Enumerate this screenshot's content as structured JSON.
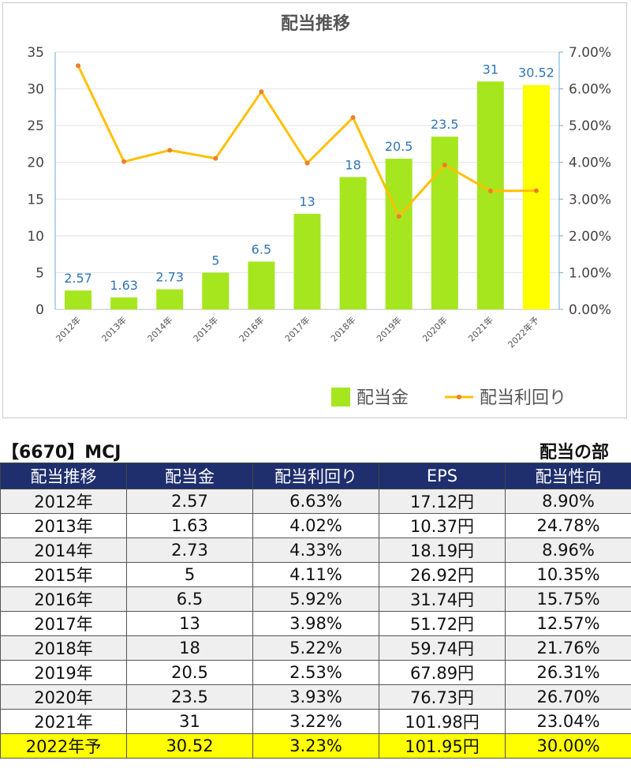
{
  "chart_data": {
    "type": "bar+line",
    "title": "配当推移",
    "categories": [
      "2012年",
      "2013年",
      "2014年",
      "2015年",
      "2016年",
      "2017年",
      "2018年",
      "2019年",
      "2020年",
      "2021年",
      "2022年予"
    ],
    "series": [
      {
        "name": "配当金",
        "kind": "bar",
        "axis": "left",
        "values": [
          2.57,
          1.63,
          2.73,
          5,
          6.5,
          13,
          18,
          20.5,
          23.5,
          31,
          30.52
        ],
        "labels": [
          "2.57",
          "1.63",
          "2.73",
          "5",
          "6.5",
          "13",
          "18",
          "20.5",
          "23.5",
          "31",
          "30.52"
        ],
        "color": "#a5e61e",
        "highlight_last_color": "#ffff00"
      },
      {
        "name": "配当利回り",
        "kind": "line",
        "axis": "right",
        "values": [
          6.63,
          4.02,
          4.33,
          4.11,
          5.92,
          3.98,
          5.22,
          2.53,
          3.93,
          3.22,
          3.23
        ],
        "color": "#ffc000",
        "marker_color": "#ed7d31"
      }
    ],
    "y_left": {
      "min": 0,
      "max": 35,
      "ticks": [
        "0",
        "5",
        "10",
        "15",
        "20",
        "25",
        "30",
        "35"
      ]
    },
    "y_right": {
      "min": 0,
      "max": 7,
      "ticks": [
        "0.00%",
        "1.00%",
        "2.00%",
        "3.00%",
        "4.00%",
        "5.00%",
        "6.00%",
        "7.00%"
      ]
    },
    "grid": true,
    "legend_position": "bottom-right"
  },
  "table": {
    "code_title": "【6670】MCJ",
    "section_title": "配当の部",
    "headers": [
      "配当推移",
      "配当金",
      "配当利回り",
      "EPS",
      "配当性向"
    ],
    "rows": [
      [
        "2012年",
        "2.57",
        "6.63%",
        "17.12円",
        "8.90%"
      ],
      [
        "2013年",
        "1.63",
        "4.02%",
        "10.37円",
        "24.78%"
      ],
      [
        "2014年",
        "2.73",
        "4.33%",
        "18.19円",
        "8.96%"
      ],
      [
        "2015年",
        "5",
        "4.11%",
        "26.92円",
        "10.35%"
      ],
      [
        "2016年",
        "6.5",
        "5.92%",
        "31.74円",
        "15.75%"
      ],
      [
        "2017年",
        "13",
        "3.98%",
        "51.72円",
        "12.57%"
      ],
      [
        "2018年",
        "18",
        "5.22%",
        "59.74円",
        "21.76%"
      ],
      [
        "2019年",
        "20.5",
        "2.53%",
        "67.89円",
        "26.31%"
      ],
      [
        "2020年",
        "23.5",
        "3.93%",
        "76.73円",
        "26.70%"
      ],
      [
        "2021年",
        "31",
        "3.22%",
        "101.98円",
        "23.04%"
      ],
      [
        "2022年予",
        "30.52",
        "3.23%",
        "101.95円",
        "30.00%"
      ]
    ]
  }
}
